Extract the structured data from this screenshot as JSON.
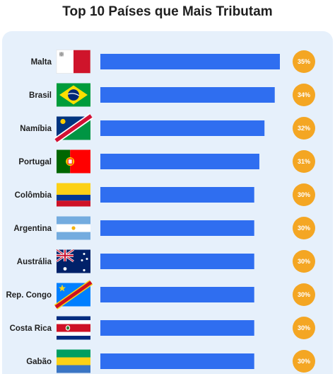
{
  "title": "Top 10 Países que Mais Tributam",
  "colors": {
    "bar": "#2f6ef0",
    "badge": "#f4a623",
    "panel": "#e6f0fb"
  },
  "chart_data": {
    "type": "bar",
    "orientation": "horizontal",
    "title": "Top 10 Países que Mais Tributam",
    "categories": [
      "Malta",
      "Brasil",
      "Namíbia",
      "Portugal",
      "Colômbia",
      "Argentina",
      "Austrália",
      "Rep. Congo",
      "Costa Rica",
      "Gabão"
    ],
    "values": [
      35,
      34,
      32,
      31,
      30,
      30,
      30,
      30,
      30,
      30
    ],
    "value_labels": [
      "35%",
      "34%",
      "32%",
      "31%",
      "30%",
      "30%",
      "30%",
      "30%",
      "30%",
      "30%"
    ],
    "flags": [
      "malta-flag-icon",
      "brazil-flag-icon",
      "namibia-flag-icon",
      "portugal-flag-icon",
      "colombia-flag-icon",
      "argentina-flag-icon",
      "australia-flag-icon",
      "congo-flag-icon",
      "costa-rica-flag-icon",
      "gabon-flag-icon"
    ],
    "grid": false,
    "legend": "none"
  }
}
